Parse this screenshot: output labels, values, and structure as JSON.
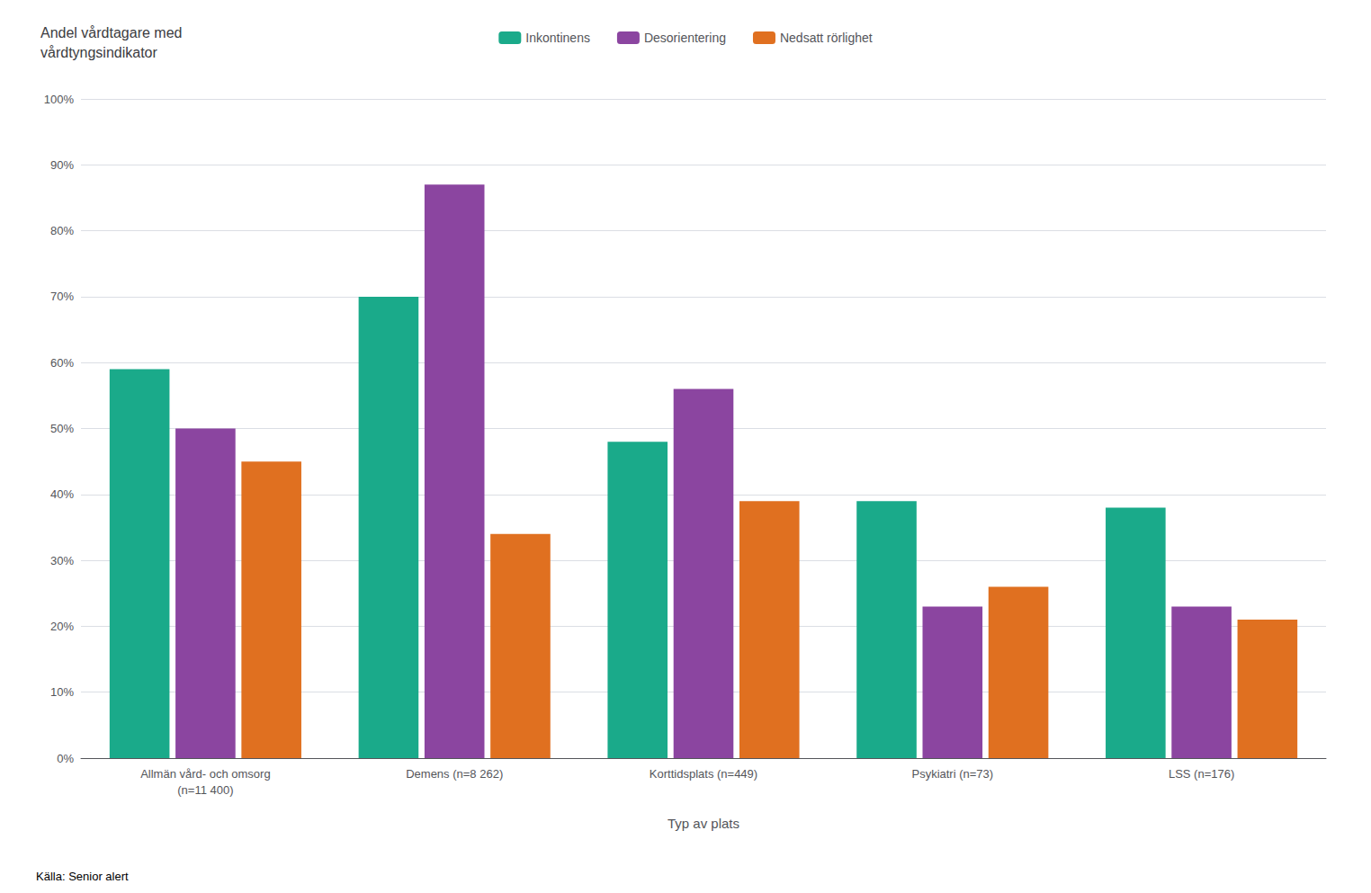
{
  "chart_data": {
    "type": "bar",
    "title": "Andel vårdtagare med\nvårdtyngsindikator",
    "xlabel": "Typ av plats",
    "categories": [
      "Allmän vård- och omsorg\n(n=11 400)",
      "Demens (n=8 262)",
      "Korttidsplats (n=449)",
      "Psykiatri (n=73)",
      "LSS (n=176)"
    ],
    "series": [
      {
        "name": "Inkontinens",
        "color": "#1aaa8a",
        "values": [
          59,
          70,
          48,
          39,
          38
        ]
      },
      {
        "name": "Desorientering",
        "color": "#8b45a0",
        "values": [
          50,
          87,
          56,
          23,
          23
        ]
      },
      {
        "name": "Nedsatt rörlighet",
        "color": "#e07020",
        "values": [
          45,
          34,
          39,
          26,
          21
        ]
      }
    ],
    "ylim": [
      0,
      100
    ],
    "yticks": [
      {
        "value": 0,
        "label": "0%"
      },
      {
        "value": 10,
        "label": "10%"
      },
      {
        "value": 20,
        "label": "20%"
      },
      {
        "value": 30,
        "label": "30%"
      },
      {
        "value": 40,
        "label": "40%"
      },
      {
        "value": 50,
        "label": "50%"
      },
      {
        "value": 60,
        "label": "60%"
      },
      {
        "value": 70,
        "label": "70%"
      },
      {
        "value": 80,
        "label": "80%"
      },
      {
        "value": 90,
        "label": "90%"
      },
      {
        "value": 100,
        "label": "100%"
      }
    ],
    "grid": true,
    "legend": "top",
    "annotations": [
      "Källa: Senior alert"
    ]
  }
}
